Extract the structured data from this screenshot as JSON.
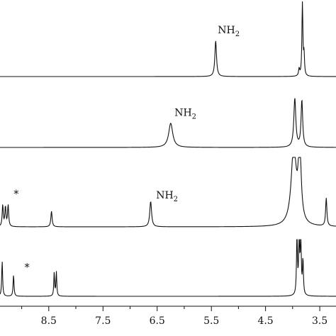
{
  "chart_data": {
    "type": "line",
    "x_axis": {
      "reversed": true,
      "xlim": [
        9.4,
        3.2
      ],
      "ticks": [
        8.5,
        7.5,
        6.5,
        5.5,
        4.5,
        3.5
      ],
      "tick_labels": [
        "8.5",
        "7.5",
        "6.5",
        "5.5",
        "4.5",
        "3.5"
      ],
      "label": ""
    },
    "grid": false,
    "legend": "none",
    "line_color": "#111111",
    "spectra": [
      {
        "peaks": [
          {
            "x": 5.42,
            "h": 0.92,
            "w": 0.018
          },
          {
            "x": 3.88,
            "h": 0.18,
            "w": 0.012
          },
          {
            "x": 3.82,
            "h": 2.0,
            "w": 0.01
          },
          {
            "x": 3.79,
            "h": 0.55,
            "w": 0.01
          }
        ],
        "annotations": [
          {
            "x": 5.38,
            "text": "NH",
            "sub": "2",
            "height": 1.0
          }
        ]
      },
      {
        "peaks": [
          {
            "x": 6.25,
            "h": 0.62,
            "w": 0.045
          },
          {
            "x": 3.96,
            "h": 1.25,
            "w": 0.022
          },
          {
            "x": 3.83,
            "h": 1.2,
            "w": 0.018
          }
        ],
        "annotations": [
          {
            "x": 6.18,
            "text": "NH",
            "sub": "2",
            "height": 0.7
          }
        ]
      },
      {
        "peaks": [
          {
            "x": 9.35,
            "h": 0.55,
            "w": 0.012
          },
          {
            "x": 9.3,
            "h": 0.5,
            "w": 0.012
          },
          {
            "x": 9.25,
            "h": 0.55,
            "w": 0.012
          },
          {
            "x": 8.45,
            "h": 0.4,
            "w": 0.014
          },
          {
            "x": 6.62,
            "h": 0.65,
            "w": 0.02
          },
          {
            "x": 3.98,
            "h": 2.0,
            "w": 0.055
          },
          {
            "x": 3.87,
            "h": 2.0,
            "w": 0.03
          },
          {
            "x": 3.38,
            "h": 0.72,
            "w": 0.014
          }
        ],
        "annotations": [
          {
            "x": 6.52,
            "text": "NH",
            "sub": "2",
            "height": 0.62
          },
          {
            "x": 9.15,
            "text": "*",
            "height": 0.65,
            "star": true
          }
        ]
      },
      {
        "peaks": [
          {
            "x": 9.36,
            "h": 0.9,
            "w": 0.01
          },
          {
            "x": 9.15,
            "h": 0.55,
            "w": 0.01
          },
          {
            "x": 8.4,
            "h": 0.6,
            "w": 0.009
          },
          {
            "x": 8.36,
            "h": 0.62,
            "w": 0.009
          },
          {
            "x": 3.92,
            "h": 1.6,
            "w": 0.01
          },
          {
            "x": 3.88,
            "h": 1.6,
            "w": 0.01
          },
          {
            "x": 3.85,
            "h": 1.6,
            "w": 0.01
          },
          {
            "x": 3.81,
            "h": 0.9,
            "w": 0.01
          }
        ],
        "annotations": [
          {
            "x": 8.95,
            "text": "*",
            "height": 0.55,
            "star": true
          }
        ]
      }
    ]
  }
}
